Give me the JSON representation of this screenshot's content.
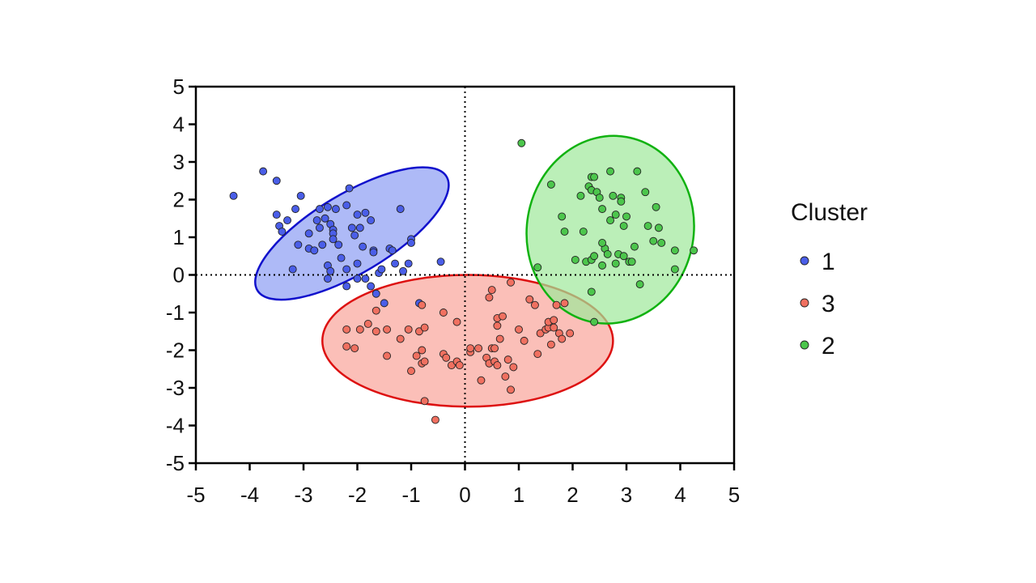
{
  "chart_data": {
    "type": "scatter",
    "title": "",
    "xlabel": "",
    "ylabel": "",
    "xlim": [
      -5,
      5
    ],
    "ylim": [
      -5,
      5
    ],
    "xticks": [
      "-5",
      "-4",
      "-3",
      "-2",
      "-1",
      "0",
      "1",
      "2",
      "3",
      "4",
      "5"
    ],
    "yticks": [
      "-5",
      "-4",
      "-3",
      "-2",
      "-1",
      "0",
      "1",
      "2",
      "3",
      "4",
      "5"
    ],
    "reference_lines": {
      "x": 0,
      "y": 0,
      "style": "dotted"
    },
    "grid": false,
    "legend": {
      "title": "Cluster",
      "position": "right",
      "entries": [
        "1",
        "3",
        "2"
      ]
    },
    "series": [
      {
        "name": "1",
        "color": "#4a5ee8",
        "ellipse": {
          "cx": -2.1,
          "cy": 1.1,
          "rx": 2.05,
          "ry": 1.05,
          "angle_deg": -31,
          "fill": "#8c9cf4",
          "stroke": "#1111cc"
        },
        "points": [
          [
            -4.3,
            2.1
          ],
          [
            -3.75,
            2.75
          ],
          [
            -3.5,
            2.5
          ],
          [
            -3.5,
            1.6
          ],
          [
            -3.45,
            1.3
          ],
          [
            -3.4,
            1.15
          ],
          [
            -3.3,
            1.45
          ],
          [
            -3.15,
            1.75
          ],
          [
            -3.05,
            2.1
          ],
          [
            -3.1,
            0.8
          ],
          [
            -2.9,
            1.1
          ],
          [
            -2.9,
            0.7
          ],
          [
            -2.8,
            0.65
          ],
          [
            -2.75,
            1.45
          ],
          [
            -2.7,
            1.75
          ],
          [
            -2.7,
            1.25
          ],
          [
            -2.65,
            0.8
          ],
          [
            -2.6,
            1.5
          ],
          [
            -2.55,
            1.8
          ],
          [
            -2.5,
            1.35
          ],
          [
            -2.45,
            1.2
          ],
          [
            -2.45,
            1.1
          ],
          [
            -2.45,
            0.95
          ],
          [
            -2.4,
            1.75
          ],
          [
            -2.35,
            0.8
          ],
          [
            -2.55,
            0.25
          ],
          [
            -2.5,
            0.1
          ],
          [
            -2.55,
            -0.1
          ],
          [
            -2.3,
            0.45
          ],
          [
            -2.2,
            1.85
          ],
          [
            -2.15,
            2.3
          ],
          [
            -2.1,
            1.25
          ],
          [
            -2.05,
            1.05
          ],
          [
            -2.0,
            1.6
          ],
          [
            -1.95,
            1.25
          ],
          [
            -1.9,
            0.75
          ],
          [
            -1.85,
            1.65
          ],
          [
            -1.75,
            1.45
          ],
          [
            -1.7,
            0.65
          ],
          [
            -1.7,
            0.6
          ],
          [
            -1.85,
            -0.1
          ],
          [
            -1.75,
            -0.3
          ],
          [
            -1.65,
            -0.5
          ],
          [
            -1.6,
            0.05
          ],
          [
            -1.5,
            -0.75
          ],
          [
            -1.4,
            0.7
          ],
          [
            -1.35,
            0.65
          ],
          [
            -1.3,
            0.3
          ],
          [
            -1.2,
            1.75
          ],
          [
            -1.15,
            0.1
          ],
          [
            -1.05,
            0.3
          ],
          [
            -1.0,
            0.95
          ],
          [
            -1.0,
            0.85
          ],
          [
            -0.85,
            -0.75
          ],
          [
            -0.45,
            0.35
          ],
          [
            -2.2,
            0.15
          ],
          [
            -2.0,
            0.3
          ],
          [
            -2.2,
            -0.3
          ],
          [
            -2.0,
            -0.1
          ],
          [
            -3.2,
            0.15
          ],
          [
            -1.55,
            0.15
          ]
        ]
      },
      {
        "name": "3",
        "color": "#f07060",
        "ellipse": {
          "cx": 0.05,
          "cy": -1.75,
          "rx": 2.7,
          "ry": 1.75,
          "angle_deg": 0,
          "fill": "#f9a49a",
          "stroke": "#dd1111"
        },
        "points": [
          [
            -2.2,
            -1.45
          ],
          [
            -2.2,
            -1.9
          ],
          [
            -2.05,
            -1.95
          ],
          [
            -1.95,
            -1.45
          ],
          [
            -1.8,
            -1.3
          ],
          [
            -1.65,
            -1.5
          ],
          [
            -1.45,
            -1.45
          ],
          [
            -1.45,
            -2.15
          ],
          [
            -1.2,
            -1.7
          ],
          [
            -1.05,
            -1.45
          ],
          [
            -1.0,
            -2.55
          ],
          [
            -0.9,
            -2.15
          ],
          [
            -0.85,
            -1.5
          ],
          [
            -0.8,
            -2.35
          ],
          [
            -0.8,
            -2.0
          ],
          [
            -0.75,
            -1.4
          ],
          [
            -0.75,
            -2.3
          ],
          [
            -0.75,
            -3.35
          ],
          [
            -0.55,
            -3.85
          ],
          [
            -0.4,
            -2.1
          ],
          [
            -0.35,
            -2.2
          ],
          [
            -0.25,
            -2.4
          ],
          [
            -0.15,
            -1.25
          ],
          [
            -0.15,
            -2.3
          ],
          [
            -0.1,
            -2.4
          ],
          [
            0.1,
            -2.05
          ],
          [
            0.1,
            -1.95
          ],
          [
            0.25,
            -1.95
          ],
          [
            0.3,
            -2.8
          ],
          [
            0.4,
            -2.2
          ],
          [
            0.45,
            -2.35
          ],
          [
            0.5,
            -1.95
          ],
          [
            0.55,
            -2.3
          ],
          [
            0.6,
            -2.4
          ],
          [
            0.55,
            -1.95
          ],
          [
            0.65,
            -1.7
          ],
          [
            0.5,
            -0.4
          ],
          [
            0.45,
            -0.6
          ],
          [
            0.6,
            -1.35
          ],
          [
            0.6,
            -1.15
          ],
          [
            0.7,
            -1.1
          ],
          [
            0.75,
            -2.7
          ],
          [
            0.8,
            -2.25
          ],
          [
            0.85,
            -0.2
          ],
          [
            0.9,
            -2.45
          ],
          [
            0.85,
            -3.05
          ],
          [
            1.0,
            -1.45
          ],
          [
            1.1,
            -1.75
          ],
          [
            1.2,
            -0.65
          ],
          [
            1.3,
            -0.8
          ],
          [
            1.35,
            -2.1
          ],
          [
            1.4,
            -1.55
          ],
          [
            1.5,
            -1.45
          ],
          [
            1.55,
            -1.4
          ],
          [
            1.55,
            -1.25
          ],
          [
            1.6,
            -1.85
          ],
          [
            1.65,
            -1.2
          ],
          [
            1.65,
            -1.4
          ],
          [
            1.75,
            -1.55
          ],
          [
            1.8,
            -1.7
          ],
          [
            1.95,
            -1.55
          ],
          [
            1.7,
            -0.8
          ],
          [
            -0.4,
            -1.0
          ],
          [
            -0.8,
            -0.8
          ],
          [
            -1.65,
            -0.95
          ],
          [
            1.85,
            -0.75
          ]
        ]
      },
      {
        "name": "2",
        "color": "#4cc64c",
        "ellipse": {
          "cx": 2.7,
          "cy": 1.2,
          "rx": 1.55,
          "ry": 2.5,
          "angle_deg": 10,
          "fill": "#9ee89a",
          "stroke": "#11b211"
        },
        "points": [
          [
            1.05,
            3.5
          ],
          [
            1.6,
            2.4
          ],
          [
            1.8,
            1.55
          ],
          [
            1.85,
            1.15
          ],
          [
            2.05,
            0.4
          ],
          [
            2.15,
            2.1
          ],
          [
            2.2,
            1.15
          ],
          [
            2.25,
            0.35
          ],
          [
            2.3,
            2.35
          ],
          [
            2.35,
            2.6
          ],
          [
            2.35,
            2.25
          ],
          [
            2.35,
            0.4
          ],
          [
            2.4,
            2.6
          ],
          [
            2.45,
            2.2
          ],
          [
            2.5,
            2.05
          ],
          [
            2.55,
            1.75
          ],
          [
            2.55,
            0.25
          ],
          [
            2.6,
            0.7
          ],
          [
            2.65,
            0.55
          ],
          [
            2.7,
            2.75
          ],
          [
            2.7,
            1.45
          ],
          [
            2.75,
            2.1
          ],
          [
            2.8,
            1.6
          ],
          [
            2.8,
            0.3
          ],
          [
            2.85,
            0.55
          ],
          [
            2.9,
            2.05
          ],
          [
            2.9,
            1.95
          ],
          [
            2.95,
            1.3
          ],
          [
            2.95,
            0.5
          ],
          [
            3.0,
            1.55
          ],
          [
            3.05,
            0.35
          ],
          [
            3.1,
            0.35
          ],
          [
            3.15,
            0.75
          ],
          [
            3.2,
            2.75
          ],
          [
            3.25,
            -0.25
          ],
          [
            3.35,
            2.2
          ],
          [
            3.4,
            1.3
          ],
          [
            3.5,
            0.9
          ],
          [
            3.55,
            1.8
          ],
          [
            3.6,
            1.25
          ],
          [
            3.65,
            0.85
          ],
          [
            3.9,
            0.65
          ],
          [
            3.9,
            0.15
          ],
          [
            4.25,
            0.65
          ],
          [
            2.4,
            -1.25
          ],
          [
            2.35,
            -0.45
          ],
          [
            1.35,
            0.2
          ],
          [
            2.4,
            0.5
          ],
          [
            2.55,
            0.85
          ]
        ]
      }
    ]
  }
}
